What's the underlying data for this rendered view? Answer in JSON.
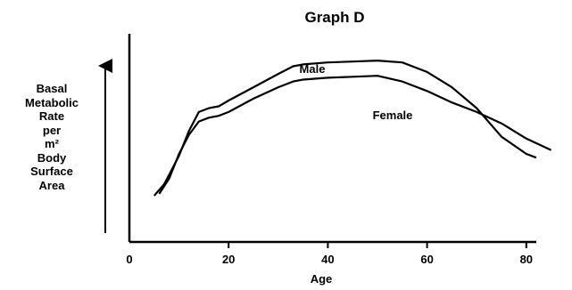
{
  "chart_data": {
    "type": "line",
    "title": "Graph D",
    "xlabel": "Age",
    "ylabel_lines": [
      "Basal",
      "Metabolic",
      "Rate",
      "per",
      "m²",
      "Body",
      "Surface",
      "Area"
    ],
    "xlim": [
      0,
      82
    ],
    "ylim": [
      0,
      100
    ],
    "xticks": [
      0,
      20,
      40,
      60,
      80
    ],
    "grid": false,
    "legend": "inline labels",
    "series": [
      {
        "name": "Male",
        "color": "#000000",
        "x": [
          5,
          7,
          10,
          12,
          14,
          16,
          18,
          20,
          25,
          30,
          33,
          35,
          40,
          45,
          50,
          55,
          60,
          65,
          70,
          75,
          80,
          82
        ],
        "y": [
          14,
          20,
          35,
          48,
          58,
          60,
          61,
          64,
          71,
          78,
          82,
          83,
          84,
          84.5,
          85,
          84,
          79,
          71,
          60,
          45,
          36,
          34
        ]
      },
      {
        "name": "Female",
        "color": "#000000",
        "x": [
          6,
          8,
          10,
          12,
          14,
          16,
          18,
          20,
          25,
          30,
          33,
          35,
          40,
          45,
          50,
          55,
          60,
          65,
          70,
          75,
          80,
          85
        ],
        "y": [
          15,
          23,
          36,
          46,
          53,
          55,
          56,
          58,
          65,
          71,
          74,
          75,
          76,
          76.5,
          77,
          74,
          69,
          63,
          58,
          52,
          44,
          38
        ]
      }
    ]
  }
}
